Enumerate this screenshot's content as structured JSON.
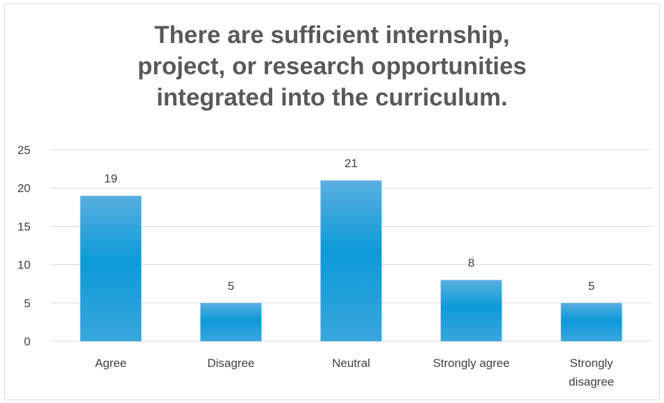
{
  "chart_data": {
    "type": "bar",
    "title_lines": [
      "There are sufficient internship,",
      "project, or research opportunities",
      "integrated into the curriculum."
    ],
    "categories": [
      "Agree",
      "Disagree",
      "Neutral",
      "Strongly agree",
      "Strongly disagree"
    ],
    "category_label_lines": [
      [
        "Agree"
      ],
      [
        "Disagree"
      ],
      [
        "Neutral"
      ],
      [
        "Strongly agree"
      ],
      [
        "Strongly",
        "disagree"
      ]
    ],
    "values": [
      19,
      5,
      21,
      8,
      5
    ],
    "ylim": [
      0,
      25
    ],
    "yticks": [
      0,
      5,
      10,
      15,
      20,
      25
    ],
    "grid": true,
    "legend": "none",
    "data_labels": true,
    "colors": {
      "bar_top": "#5aafe0",
      "bar_bottom": "#0096d6",
      "grid": "#d9d9d9",
      "text": "#404040",
      "title": "#595959"
    }
  }
}
